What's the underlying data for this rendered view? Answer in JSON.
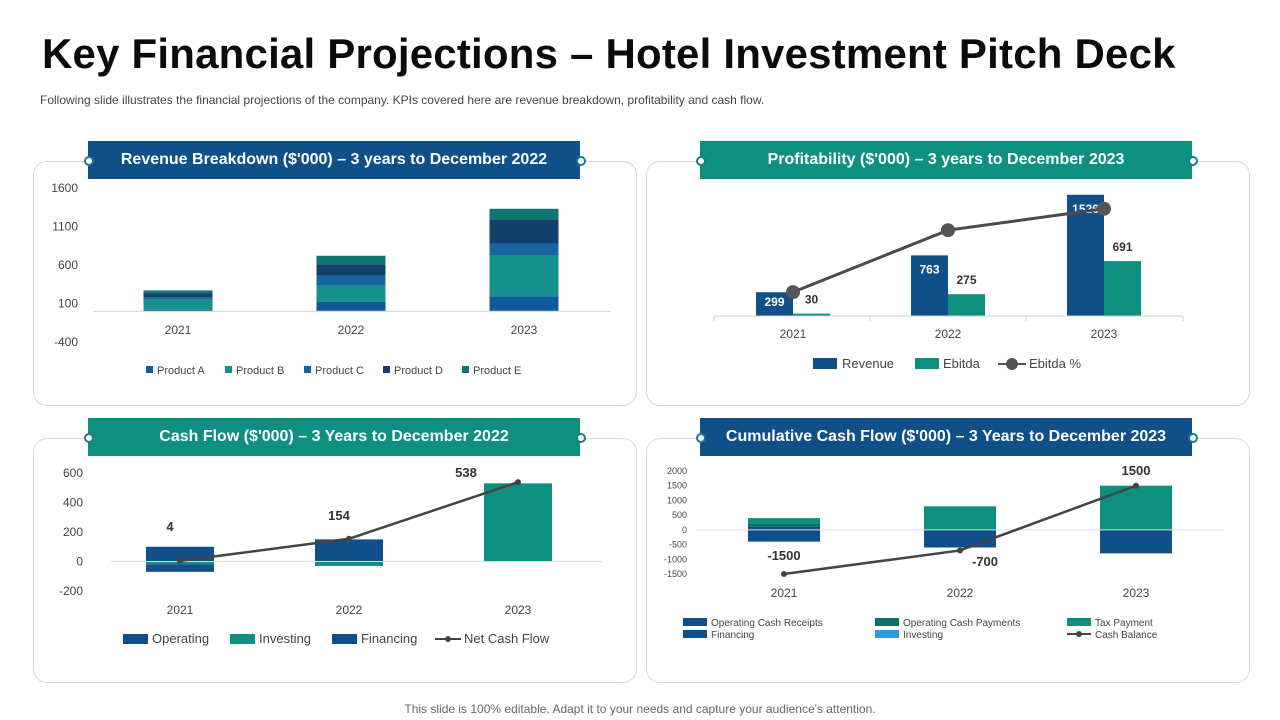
{
  "page": {
    "title": "Key Financial Projections – Hotel Investment Pitch Deck",
    "subtitle": "Following slide illustrates the financial projections of the company. KPIs covered here are revenue breakdown, profitability and cash flow.",
    "footer": "This slide is 100% editable. Adapt it to your needs and capture your audience's attention."
  },
  "colors": {
    "navy": "#10508a",
    "teal": "#0e9081",
    "dark_teal": "#0d6f6c",
    "mid_blue": "#13669a",
    "deep_navy": "#123f6b",
    "light_blue": "#2f9ae0",
    "line": "#444444"
  },
  "chart_data": [
    {
      "id": "revenue",
      "type": "bar",
      "stacked": true,
      "title": "Revenue Breakdown ($'000) – 3 years to December 2022",
      "categories": [
        "2021",
        "2022",
        "2023"
      ],
      "series": [
        {
          "name": "Product A",
          "color": "#12599b",
          "values": [
            20,
            120,
            190
          ]
        },
        {
          "name": "Product B",
          "color": "#14918a",
          "values": [
            130,
            210,
            530
          ]
        },
        {
          "name": "Product C",
          "color": "#1566a0",
          "values": [
            30,
            130,
            160
          ]
        },
        {
          "name": "Product D",
          "color": "#123f6b",
          "values": [
            50,
            150,
            310
          ]
        },
        {
          "name": "Product E",
          "color": "#0f766f",
          "values": [
            40,
            110,
            140
          ]
        }
      ],
      "yticks": [
        1600,
        1100,
        600,
        100,
        -400
      ],
      "ylim": [
        -400,
        1600
      ]
    },
    {
      "id": "profitability",
      "type": "bar",
      "title": "Profitability ($'000) – 3 years to December 2023",
      "categories": [
        "2021",
        "2022",
        "2023"
      ],
      "series": [
        {
          "name": "Revenue",
          "color": "#10508a",
          "values": [
            299,
            763,
            1526
          ]
        },
        {
          "name": "Ebitda",
          "color": "#0e9081",
          "values": [
            30,
            275,
            691
          ]
        }
      ],
      "line": {
        "name": "Ebitda %",
        "color": "#4a4a4a",
        "values": [
          10,
          36,
          45
        ]
      },
      "ylim": [
        0,
        1800
      ],
      "line_ylim": [
        0,
        60
      ]
    },
    {
      "id": "cashflow",
      "type": "bar",
      "stacked": true,
      "title": "Cash Flow ($'000) – 3 Years to December 2022",
      "categories": [
        "2021",
        "2022",
        "2023"
      ],
      "series": [
        {
          "name": "Operating",
          "color": "#10508a",
          "values": [
            100,
            150,
            0
          ]
        },
        {
          "name": "Investing",
          "color": "#0e9081",
          "values": [
            -20,
            -30,
            530
          ]
        },
        {
          "name": "Financing",
          "color": "#10508a",
          "values": [
            -50,
            0,
            0
          ]
        }
      ],
      "line": {
        "name": "Net Cash Flow",
        "color": "#444444",
        "values": [
          4,
          154,
          538
        ],
        "labels": [
          "4",
          "154",
          "538"
        ]
      },
      "yticks": [
        600,
        400,
        200,
        0,
        -200
      ],
      "ylim": [
        -200,
        600
      ]
    },
    {
      "id": "cumulative",
      "type": "bar",
      "stacked": true,
      "title": "Cumulative Cash Flow ($'000) – 3 Years to December 2023",
      "categories": [
        "2021",
        "2022",
        "2023"
      ],
      "series": [
        {
          "name": "Operating Cash Receipts",
          "color": "#10508a",
          "values": [
            100,
            0,
            0
          ]
        },
        {
          "name": "Operating Cash Payments",
          "color": "#0d6f6c",
          "values": [
            100,
            0,
            0
          ]
        },
        {
          "name": "Tax Payment",
          "color": "#0e9081",
          "values": [
            200,
            800,
            1500
          ]
        },
        {
          "name": "Financing",
          "color": "#10508a",
          "values": [
            -400,
            -600,
            -800
          ]
        },
        {
          "name": "Investing",
          "color": "#2f9ae0",
          "values": [
            0,
            0,
            0
          ]
        }
      ],
      "line": {
        "name": "Cash Balance",
        "color": "#444444",
        "values": [
          -1500,
          -700,
          1500
        ],
        "labels": [
          "-1500",
          "-700",
          "1500"
        ]
      },
      "yticks": [
        2000,
        1500,
        1000,
        500,
        0,
        -500,
        -1000,
        -1500
      ],
      "ylim": [
        -1500,
        2000
      ]
    }
  ]
}
